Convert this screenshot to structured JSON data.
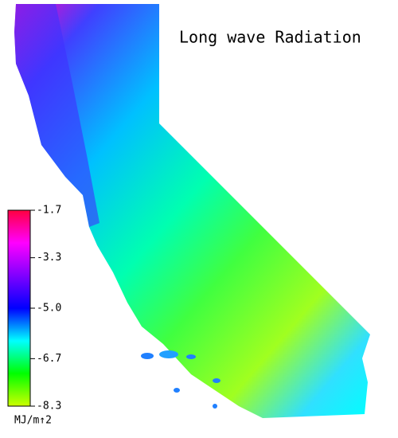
{
  "map": {
    "title": "Long wave Radiation",
    "colorbar": {
      "range": [
        -8.3,
        -1.7
      ],
      "ticks": [
        -1.7,
        -3.3,
        {
          "value": -5,
          "label": "-5.0"
        },
        -6.7,
        -8.3
      ],
      "unit": "MJ/m↑2",
      "colors": [
        "#ccff00",
        "#00ff00",
        "#00ffff",
        "#0000ff",
        "#8000ff",
        "#ff00ff",
        "#ff0040"
      ]
    }
  }
}
